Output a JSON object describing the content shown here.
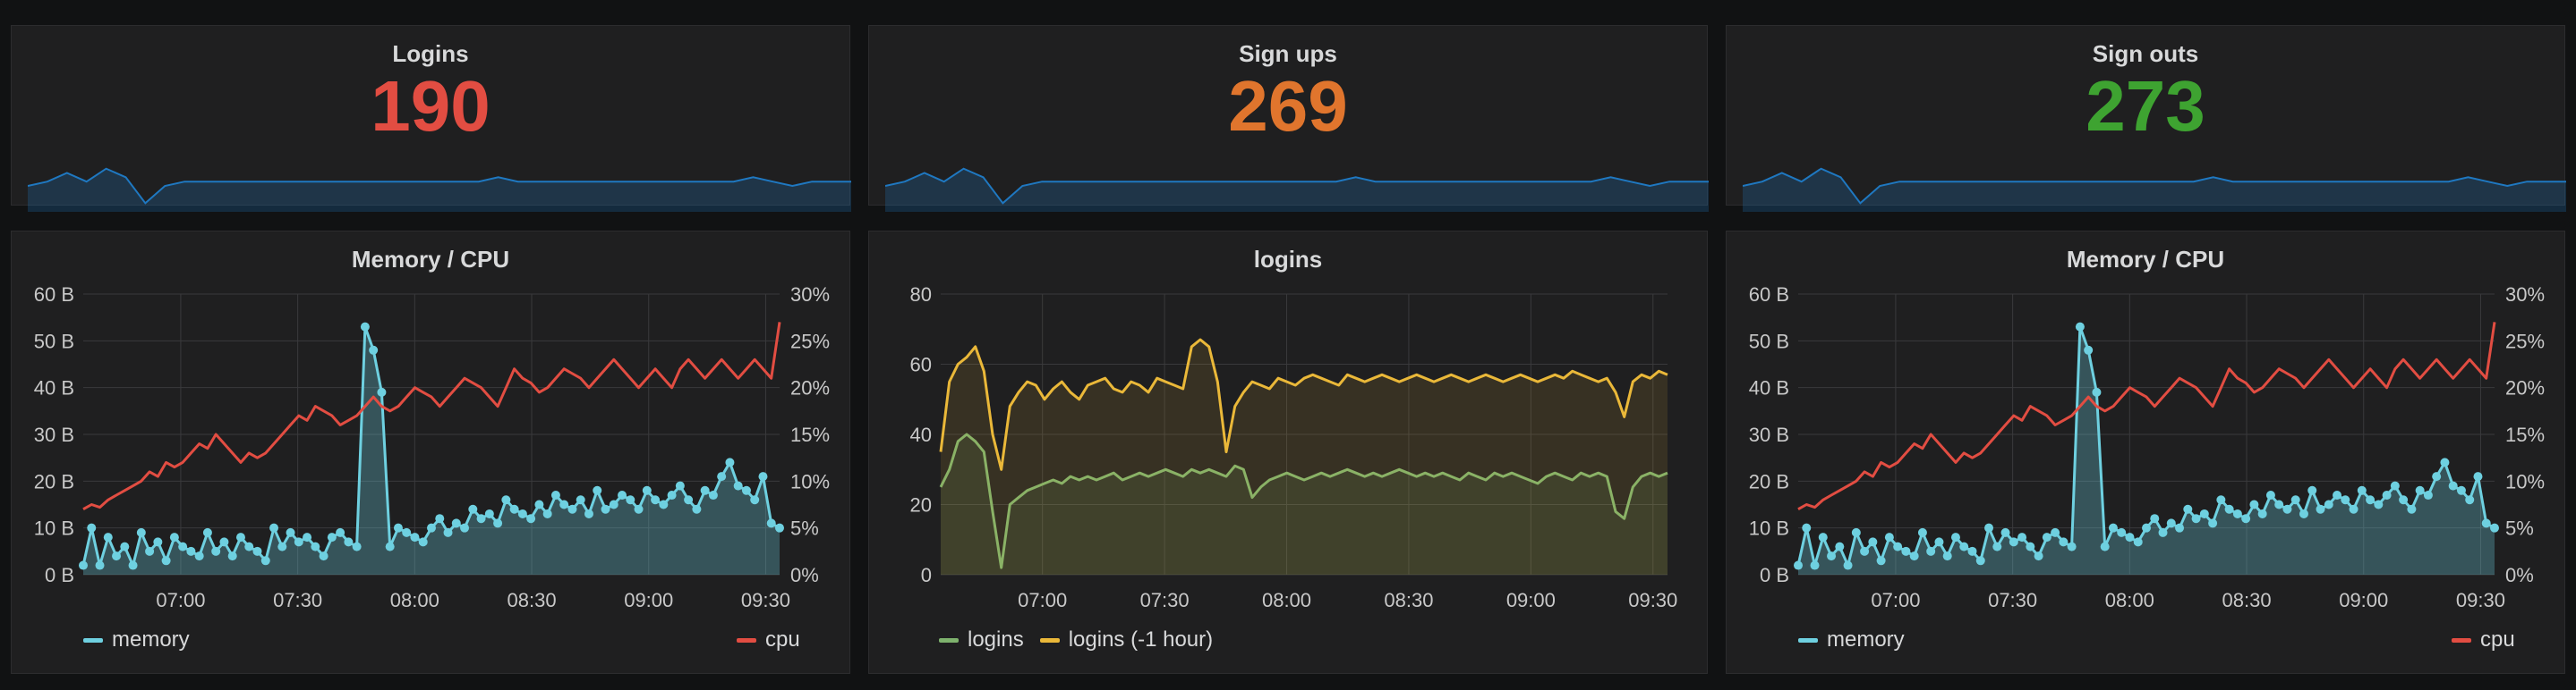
{
  "stats": [
    {
      "title": "Logins",
      "value": "190",
      "color": "#e24d42"
    },
    {
      "title": "Sign ups",
      "value": "269",
      "color": "#e0752d"
    },
    {
      "title": "Sign outs",
      "value": "273",
      "color": "#3ea331"
    }
  ],
  "chart_data": [
    {
      "type": "line",
      "title": "Memory / CPU",
      "x_ticks": [
        "07:00",
        "07:30",
        "08:00",
        "08:30",
        "09:00",
        "09:30"
      ],
      "y_left": {
        "ticks": [
          "60 B",
          "50 B",
          "40 B",
          "30 B",
          "20 B",
          "10 B",
          "0 B"
        ],
        "range": [
          0,
          60
        ]
      },
      "y_right": {
        "ticks": [
          "30%",
          "25%",
          "20%",
          "15%",
          "10%",
          "5%",
          "0%"
        ],
        "range": [
          0,
          30
        ]
      },
      "grid": true,
      "series": [
        {
          "name": "memory",
          "axis": "left",
          "color": "#6ed0e0",
          "fill": true,
          "points": true,
          "values": [
            2,
            10,
            2,
            8,
            4,
            6,
            2,
            9,
            5,
            7,
            3,
            8,
            6,
            5,
            4,
            9,
            5,
            7,
            4,
            8,
            6,
            5,
            3,
            10,
            6,
            9,
            7,
            8,
            6,
            4,
            8,
            9,
            7,
            6,
            53,
            48,
            39,
            6,
            10,
            9,
            8,
            7,
            10,
            12,
            9,
            11,
            10,
            14,
            12,
            13,
            11,
            16,
            14,
            13,
            12,
            15,
            13,
            17,
            15,
            14,
            16,
            13,
            18,
            14,
            15,
            17,
            16,
            14,
            18,
            16,
            15,
            17,
            19,
            16,
            14,
            18,
            17,
            21,
            24,
            19,
            18,
            16,
            21,
            11,
            10
          ]
        },
        {
          "name": "cpu",
          "axis": "right",
          "color": "#e24d42",
          "fill": false,
          "points": false,
          "values": [
            7,
            7.5,
            7.2,
            8,
            8.5,
            9,
            9.5,
            10,
            11,
            10.5,
            12,
            11.5,
            12,
            13,
            14,
            13.5,
            15,
            14,
            13,
            12,
            13,
            12.5,
            13,
            14,
            15,
            16,
            17,
            16.5,
            18,
            17.5,
            17,
            16,
            16.5,
            17,
            18,
            19,
            18,
            17.5,
            18,
            19,
            20,
            19.5,
            19,
            18,
            19,
            20,
            21,
            20.5,
            20,
            19,
            18,
            20,
            22,
            21,
            20.5,
            19.5,
            20,
            21,
            22,
            21.5,
            21,
            20,
            21,
            22,
            23,
            22,
            21,
            20,
            21,
            22,
            21,
            20,
            22,
            23,
            22,
            21,
            22,
            23,
            22,
            21,
            22,
            23,
            22,
            21,
            27
          ]
        }
      ]
    },
    {
      "type": "area",
      "title": "logins",
      "x_ticks": [
        "07:00",
        "07:30",
        "08:00",
        "08:30",
        "09:00",
        "09:30"
      ],
      "y_left": {
        "ticks": [
          "80",
          "60",
          "40",
          "20",
          "0"
        ],
        "range": [
          0,
          80
        ]
      },
      "grid": true,
      "series": [
        {
          "name": "logins",
          "color": "#7eb26d",
          "values": [
            25,
            30,
            38,
            40,
            38,
            35,
            18,
            2,
            20,
            22,
            24,
            25,
            26,
            27,
            26,
            28,
            27,
            28,
            27,
            28,
            29,
            27,
            28,
            29,
            28,
            29,
            30,
            29,
            28,
            30,
            29,
            30,
            29,
            28,
            31,
            30,
            22,
            25,
            27,
            28,
            29,
            28,
            27,
            28,
            29,
            28,
            29,
            30,
            29,
            28,
            29,
            28,
            29,
            30,
            29,
            28,
            29,
            28,
            29,
            28,
            27,
            29,
            28,
            27,
            29,
            28,
            29,
            28,
            27,
            26,
            28,
            29,
            28,
            27,
            29,
            28,
            29,
            28,
            18,
            16,
            25,
            28,
            29,
            28,
            29
          ]
        },
        {
          "name": "logins (-1 hour)",
          "color": "#eab839",
          "values": [
            35,
            55,
            60,
            62,
            65,
            58,
            40,
            30,
            48,
            52,
            55,
            54,
            50,
            53,
            55,
            52,
            50,
            54,
            55,
            56,
            53,
            52,
            55,
            54,
            52,
            56,
            55,
            54,
            53,
            65,
            67,
            65,
            55,
            35,
            48,
            52,
            55,
            54,
            53,
            56,
            55,
            54,
            56,
            57,
            56,
            55,
            54,
            57,
            56,
            55,
            56,
            57,
            56,
            55,
            56,
            57,
            56,
            55,
            56,
            57,
            56,
            55,
            56,
            57,
            56,
            55,
            56,
            57,
            56,
            55,
            56,
            57,
            56,
            58,
            57,
            56,
            55,
            56,
            52,
            45,
            55,
            57,
            56,
            58,
            57
          ]
        }
      ]
    },
    {
      "type": "line",
      "title": "Memory / CPU",
      "x_ticks": [
        "07:00",
        "07:30",
        "08:00",
        "08:30",
        "09:00",
        "09:30"
      ],
      "y_left": {
        "ticks": [
          "60 B",
          "50 B",
          "40 B",
          "30 B",
          "20 B",
          "10 B",
          "0 B"
        ],
        "range": [
          0,
          60
        ]
      },
      "y_right": {
        "ticks": [
          "30%",
          "25%",
          "20%",
          "15%",
          "10%",
          "5%",
          "0%"
        ],
        "range": [
          0,
          30
        ]
      },
      "grid": true,
      "series": [
        {
          "name": "memory",
          "axis": "left",
          "color": "#6ed0e0",
          "fill": true,
          "points": true,
          "values": [
            2,
            10,
            2,
            8,
            4,
            6,
            2,
            9,
            5,
            7,
            3,
            8,
            6,
            5,
            4,
            9,
            5,
            7,
            4,
            8,
            6,
            5,
            3,
            10,
            6,
            9,
            7,
            8,
            6,
            4,
            8,
            9,
            7,
            6,
            53,
            48,
            39,
            6,
            10,
            9,
            8,
            7,
            10,
            12,
            9,
            11,
            10,
            14,
            12,
            13,
            11,
            16,
            14,
            13,
            12,
            15,
            13,
            17,
            15,
            14,
            16,
            13,
            18,
            14,
            15,
            17,
            16,
            14,
            18,
            16,
            15,
            17,
            19,
            16,
            14,
            18,
            17,
            21,
            24,
            19,
            18,
            16,
            21,
            11,
            10
          ]
        },
        {
          "name": "cpu",
          "axis": "right",
          "color": "#e24d42",
          "fill": false,
          "points": false,
          "values": [
            7,
            7.5,
            7.2,
            8,
            8.5,
            9,
            9.5,
            10,
            11,
            10.5,
            12,
            11.5,
            12,
            13,
            14,
            13.5,
            15,
            14,
            13,
            12,
            13,
            12.5,
            13,
            14,
            15,
            16,
            17,
            16.5,
            18,
            17.5,
            17,
            16,
            16.5,
            17,
            18,
            19,
            18,
            17.5,
            18,
            19,
            20,
            19.5,
            19,
            18,
            19,
            20,
            21,
            20.5,
            20,
            19,
            18,
            20,
            22,
            21,
            20.5,
            19.5,
            20,
            21,
            22,
            21.5,
            21,
            20,
            21,
            22,
            23,
            22,
            21,
            20,
            21,
            22,
            21,
            20,
            22,
            23,
            22,
            21,
            22,
            23,
            22,
            21,
            22,
            23,
            22,
            21,
            27
          ]
        }
      ]
    }
  ],
  "sparkline": {
    "color": "#1f78c1",
    "values": [
      6,
      7,
      9,
      7,
      10,
      8,
      2,
      6,
      7,
      7,
      7,
      7,
      7,
      7,
      7,
      7,
      7,
      7,
      7,
      7,
      7,
      7,
      7,
      7,
      8,
      7,
      7,
      7,
      7,
      7,
      7,
      7,
      7,
      7,
      7,
      7,
      7,
      8,
      7,
      6,
      7,
      7,
      7
    ]
  }
}
